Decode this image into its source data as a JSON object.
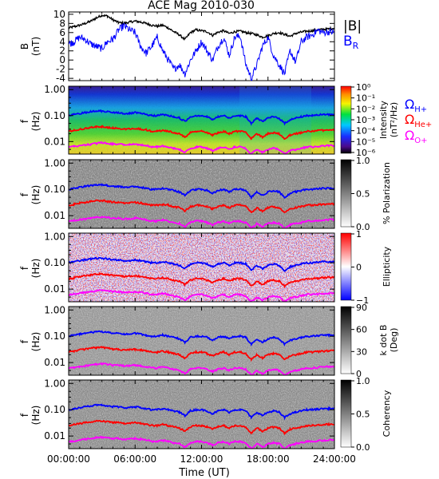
{
  "chart_data": {
    "title": "ACE Mag 2010-030",
    "xlabel": "Time (UT)",
    "x_ticks": [
      "00:00:00",
      "06:00:00",
      "12:00:00",
      "18:00:00",
      "24:00:00"
    ],
    "panels": [
      {
        "id": "B",
        "type": "line",
        "ylabel_lines": [
          "B",
          "(nT)"
        ],
        "ylim": [
          -4.5,
          10.5
        ],
        "y_ticks": [
          "10",
          "8",
          "6",
          "4",
          "2",
          "0",
          "-2",
          "-4"
        ],
        "legend": [
          {
            "label": "|B|",
            "color": "#000000"
          },
          {
            "label": "B_R",
            "color": "#0000ff"
          }
        ],
        "series": [
          {
            "name": "|B|",
            "color": "#000000",
            "x_hours": [
              0,
              0.5,
              1,
              1.5,
              2,
              2.5,
              3,
              3.5,
              4,
              4.5,
              5,
              5.5,
              6,
              6.5,
              7,
              7.5,
              8,
              8.5,
              9,
              9.5,
              10,
              10.5,
              11,
              11.5,
              12,
              12.5,
              13,
              13.5,
              14,
              14.5,
              15,
              15.5,
              16,
              16.5,
              17,
              17.5,
              18,
              18.5,
              19,
              19.5,
              20,
              20.5,
              21,
              21.5,
              22,
              22.5,
              23,
              23.5,
              24
            ],
            "values": [
              7,
              7.3,
              7.6,
              8,
              8.5,
              9.2,
              9.8,
              9.6,
              8.8,
              8.2,
              8,
              8.3,
              8.5,
              8.3,
              8,
              7.6,
              7.4,
              7.6,
              7,
              6.2,
              5.5,
              4.5,
              6,
              6.6,
              6.4,
              6.2,
              5.4,
              6.1,
              6.4,
              5.8,
              6.2,
              6.3,
              6,
              5.8,
              5.5,
              5,
              5.3,
              5.8,
              6,
              5.6,
              5.2,
              5.8,
              6.1,
              6.3,
              6.4,
              6.6,
              6.7,
              6.8,
              7
            ]
          },
          {
            "name": "B_R",
            "color": "#0000ff",
            "x_hours": [
              0,
              0.5,
              1,
              1.5,
              2,
              2.5,
              3,
              3.5,
              4,
              4.5,
              5,
              5.5,
              6,
              6.5,
              7,
              7.5,
              8,
              8.5,
              9,
              9.5,
              10,
              10.5,
              11,
              11.5,
              12,
              12.5,
              13,
              13.5,
              14,
              14.5,
              15,
              15.5,
              16,
              16.5,
              17,
              17.5,
              18,
              18.5,
              19,
              19.5,
              20,
              20.5,
              21,
              21.5,
              22,
              22.5,
              23,
              23.5,
              24
            ],
            "values": [
              3.5,
              4,
              5,
              4.5,
              3.5,
              3,
              2.5,
              4,
              4.5,
              6.5,
              7.5,
              6.6,
              6,
              3,
              1.5,
              3,
              5,
              2,
              0,
              -2,
              -1,
              -3,
              0,
              2,
              4,
              2,
              0,
              3,
              5,
              1,
              5,
              5.2,
              -1,
              -4,
              -1,
              3,
              5,
              1,
              -1,
              -3,
              2,
              -0.5,
              4,
              5,
              5.5,
              6.5,
              6,
              6.2,
              6
            ]
          }
        ]
      },
      {
        "id": "intensity",
        "type": "heatmap",
        "ylabel_lines": [
          "f",
          "(Hz)"
        ],
        "y_scale": "log",
        "y_ticks": [
          "1.00",
          "0.10",
          "0.01"
        ],
        "colorbar": {
          "colormap": "rainbow",
          "title_lines": [
            "Intensity",
            "(nT²/Hz)"
          ],
          "tick_labels": [
            "10⁰",
            "10⁻¹",
            "10⁻²",
            "10⁻³",
            "10⁻⁴",
            "10⁻⁵",
            "10⁻⁶"
          ]
        },
        "legend": [
          {
            "label": "Ω",
            "sub": "H+",
            "color": "#0000ff"
          },
          {
            "label": "Ω",
            "sub": "He+",
            "color": "#ff0000"
          },
          {
            "label": "Ω",
            "sub": "O+",
            "color": "#ff00ff"
          }
        ]
      },
      {
        "id": "polarization",
        "type": "heatmap",
        "ylabel_lines": [
          "f",
          "(Hz)"
        ],
        "y_scale": "log",
        "y_ticks": [
          "1.00",
          "0.10",
          "0.01"
        ],
        "colorbar": {
          "colormap": "gray",
          "title_lines": [
            "% Polarization"
          ],
          "tick_labels": [
            "1.0",
            "0.5",
            "0.0"
          ]
        }
      },
      {
        "id": "ellipticity",
        "type": "heatmap",
        "ylabel_lines": [
          "f",
          "(Hz)"
        ],
        "y_scale": "log",
        "y_ticks": [
          "1.00",
          "0.10",
          "0.01"
        ],
        "colorbar": {
          "colormap": "bwr",
          "title_lines": [
            "Ellipticity"
          ],
          "tick_labels": [
            "1",
            "0",
            "−1"
          ]
        }
      },
      {
        "id": "k_dot_B",
        "type": "heatmap",
        "ylabel_lines": [
          "f",
          "(Hz)"
        ],
        "y_scale": "log",
        "y_ticks": [
          "1.00",
          "0.10",
          "0.01"
        ],
        "colorbar": {
          "colormap": "gray",
          "title_lines": [
            "k dot B",
            "(Deg)"
          ],
          "tick_labels": [
            "90",
            "60",
            "30",
            "0"
          ]
        }
      },
      {
        "id": "coherency",
        "type": "heatmap",
        "ylabel_lines": [
          "f",
          "(Hz)"
        ],
        "y_scale": "log",
        "y_ticks": [
          "1.00",
          "0.10",
          "0.01"
        ],
        "colorbar": {
          "colormap": "gray",
          "title_lines": [
            "Coherency"
          ],
          "tick_labels": [
            "1.0",
            "0.5",
            "0.0"
          ]
        }
      }
    ],
    "gyrofrequency_curves": {
      "x_hours": [
        0,
        0.5,
        1,
        1.5,
        2,
        2.5,
        3,
        3.5,
        4,
        4.5,
        5,
        5.5,
        6,
        6.5,
        7,
        7.5,
        8,
        8.5,
        9,
        9.5,
        10,
        10.5,
        11,
        11.5,
        12,
        12.5,
        13,
        13.5,
        14,
        14.5,
        15,
        15.5,
        16,
        16.5,
        17,
        17.5,
        18,
        18.5,
        19,
        19.5,
        20,
        20.5,
        21,
        21.5,
        22,
        22.5,
        23,
        23.5,
        24
      ],
      "series": [
        {
          "name": "ΩH+",
          "color": "#0000ff",
          "values_hz": [
            0.1,
            0.11,
            0.12,
            0.13,
            0.14,
            0.15,
            0.15,
            0.14,
            0.13,
            0.13,
            0.12,
            0.12,
            0.13,
            0.12,
            0.11,
            0.1,
            0.1,
            0.11,
            0.1,
            0.09,
            0.08,
            0.06,
            0.09,
            0.1,
            0.1,
            0.09,
            0.07,
            0.09,
            0.1,
            0.08,
            0.1,
            0.1,
            0.09,
            0.05,
            0.08,
            0.06,
            0.08,
            0.09,
            0.08,
            0.05,
            0.07,
            0.08,
            0.09,
            0.1,
            0.1,
            0.105,
            0.11,
            0.11,
            0.11
          ]
        },
        {
          "name": "ΩHe+",
          "color": "#ff0000",
          "values_hz": [
            0.025,
            0.027,
            0.03,
            0.032,
            0.035,
            0.037,
            0.038,
            0.035,
            0.033,
            0.032,
            0.03,
            0.031,
            0.032,
            0.03,
            0.028,
            0.025,
            0.025,
            0.027,
            0.025,
            0.022,
            0.02,
            0.015,
            0.022,
            0.025,
            0.025,
            0.022,
            0.018,
            0.022,
            0.025,
            0.02,
            0.025,
            0.025,
            0.022,
            0.013,
            0.02,
            0.015,
            0.02,
            0.022,
            0.02,
            0.013,
            0.018,
            0.02,
            0.022,
            0.025,
            0.025,
            0.026,
            0.027,
            0.028,
            0.028
          ]
        },
        {
          "name": "ΩO+",
          "color": "#ff00ff",
          "values_hz": [
            0.006,
            0.0065,
            0.007,
            0.0075,
            0.008,
            0.0085,
            0.009,
            0.0085,
            0.008,
            0.008,
            0.0075,
            0.0076,
            0.008,
            0.0075,
            0.007,
            0.0062,
            0.0062,
            0.0068,
            0.0062,
            0.0055,
            0.005,
            0.0038,
            0.0055,
            0.0062,
            0.0062,
            0.0055,
            0.0045,
            0.0055,
            0.0062,
            0.005,
            0.0062,
            0.0062,
            0.0055,
            0.0033,
            0.005,
            0.0038,
            0.005,
            0.0055,
            0.005,
            0.0033,
            0.0045,
            0.005,
            0.0055,
            0.0062,
            0.0062,
            0.0065,
            0.0068,
            0.007,
            0.007
          ]
        }
      ]
    },
    "colors": {
      "blue": "#0000ff",
      "red": "#ff0000",
      "magenta": "#ff00ff",
      "black": "#000000"
    }
  }
}
